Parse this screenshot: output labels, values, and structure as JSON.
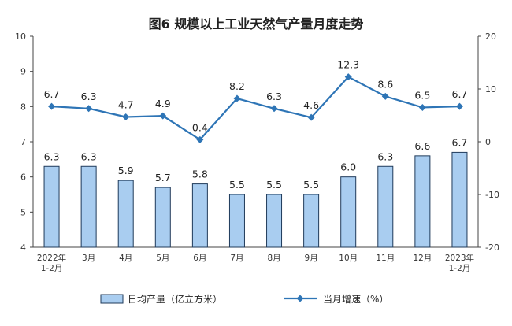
{
  "chart_data": {
    "type": "bar+line",
    "title": "图6  规模以上工业天然气产量月度走势",
    "categories": [
      [
        "2022年",
        "1-2月"
      ],
      [
        "3月"
      ],
      [
        "4月"
      ],
      [
        "5月"
      ],
      [
        "6月"
      ],
      [
        "7月"
      ],
      [
        "8月"
      ],
      [
        "9月"
      ],
      [
        "10月"
      ],
      [
        "11月"
      ],
      [
        "12月"
      ],
      [
        "2023年",
        "1-2月"
      ]
    ],
    "series": [
      {
        "name": "日均产量（亿立方米）",
        "kind": "bar",
        "axis": "left",
        "values": [
          6.3,
          6.3,
          5.9,
          5.7,
          5.8,
          5.5,
          5.5,
          5.5,
          6.0,
          6.3,
          6.6,
          6.7
        ],
        "labels": [
          "6.3",
          "6.3",
          "5.9",
          "5.7",
          "5.8",
          "5.5",
          "5.5",
          "5.5",
          "6.0",
          "6.3",
          "6.6",
          "6.7"
        ],
        "color": "#a9cdf0",
        "edge": "#1f3a5a"
      },
      {
        "name": "当月增速（%）",
        "kind": "line",
        "axis": "right",
        "values": [
          6.7,
          6.3,
          4.7,
          4.9,
          0.4,
          8.2,
          6.3,
          4.6,
          12.3,
          8.6,
          6.5,
          6.7
        ],
        "labels": [
          "6.7",
          "6.3",
          "4.7",
          "4.9",
          "0.4",
          "8.2",
          "6.3",
          "4.6",
          "12.3",
          "8.6",
          "6.5",
          "6.7"
        ],
        "color": "#2e75b6"
      }
    ],
    "left_axis": {
      "min": 4,
      "max": 10,
      "ticks": [
        "4",
        "5",
        "6",
        "7",
        "8",
        "9",
        "10"
      ]
    },
    "right_axis": {
      "min": -20,
      "max": 20,
      "ticks": [
        "-20",
        "-10",
        "0",
        "10",
        "20"
      ]
    },
    "legend": "bottom"
  }
}
